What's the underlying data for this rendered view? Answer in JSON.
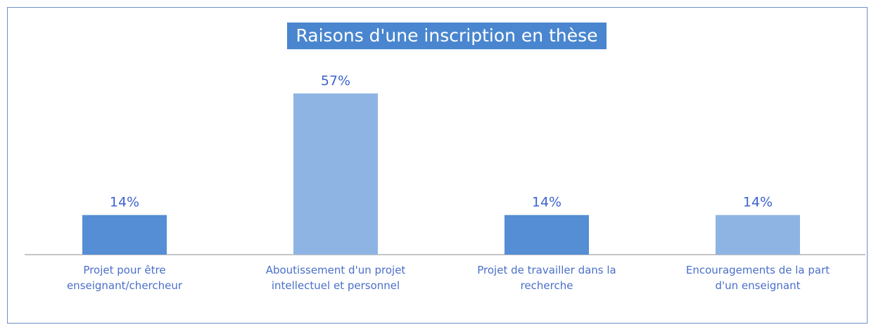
{
  "chart_data": {
    "type": "bar",
    "title": "Raisons d'une inscription en thèse",
    "categories": [
      "Projet pour être enseignant/chercheur",
      "Aboutissement d'un projet intellectuel et personnel",
      "Projet de travailler dans la recherche",
      "Encouragements de la part d'un enseignant"
    ],
    "values": [
      14,
      57,
      14,
      14
    ],
    "value_labels": [
      "14%",
      "57%",
      "14%",
      "14%"
    ],
    "colors": [
      "#558ed5",
      "#8eb4e3",
      "#558ed5",
      "#8eb4e3"
    ]
  }
}
